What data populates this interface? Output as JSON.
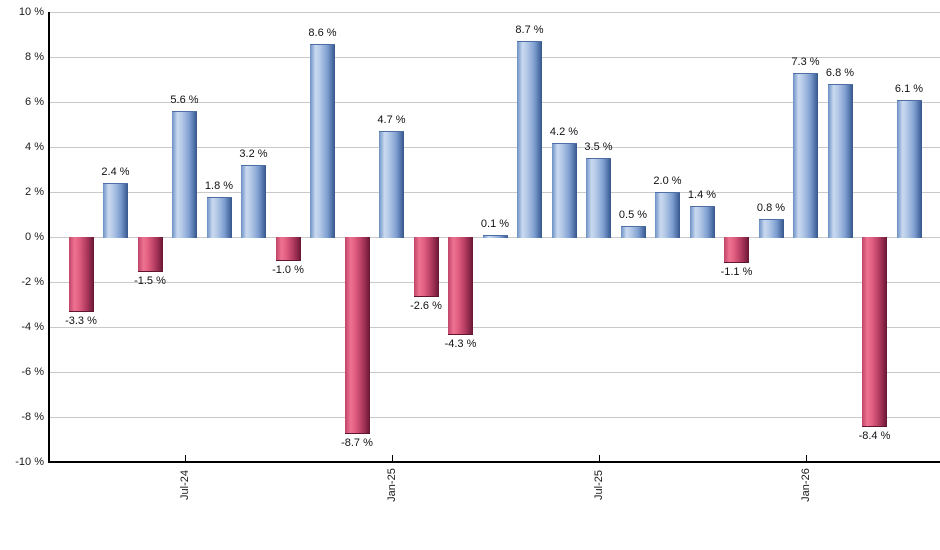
{
  "chart_data": {
    "type": "bar",
    "title": "",
    "xlabel": "",
    "ylabel": "",
    "ylim": [
      -10,
      10
    ],
    "grid": true,
    "legend": false,
    "colors": {
      "positive_bar": "#7e9ed0",
      "negative_bar": "#d0496e",
      "gridline": "#c9c9c9",
      "axis": "#000000",
      "text": "#1a1a1a"
    },
    "y_ticks": [
      {
        "value": 10,
        "label": "10 %"
      },
      {
        "value": 8,
        "label": "8 %"
      },
      {
        "value": 6,
        "label": "6 %"
      },
      {
        "value": 4,
        "label": "4 %"
      },
      {
        "value": 2,
        "label": "2 %"
      },
      {
        "value": 0,
        "label": "0 %"
      },
      {
        "value": -2,
        "label": "-2 %"
      },
      {
        "value": -4,
        "label": "-4 %"
      },
      {
        "value": -6,
        "label": "-6 %"
      },
      {
        "value": -8,
        "label": "-8 %"
      },
      {
        "value": -10,
        "label": "-10 %"
      }
    ],
    "bars": [
      {
        "value": -3.3,
        "label": "-3.3 %"
      },
      {
        "value": 2.4,
        "label": "2.4 %"
      },
      {
        "value": -1.5,
        "label": "-1.5 %"
      },
      {
        "value": 5.6,
        "label": "5.6 %"
      },
      {
        "value": 1.8,
        "label": "1.8 %"
      },
      {
        "value": 3.2,
        "label": "3.2 %"
      },
      {
        "value": -1.0,
        "label": "-1.0 %"
      },
      {
        "value": 8.6,
        "label": "8.6 %"
      },
      {
        "value": -8.7,
        "label": "-8.7 %"
      },
      {
        "value": 4.7,
        "label": "4.7 %"
      },
      {
        "value": -2.6,
        "label": "-2.6 %"
      },
      {
        "value": -4.3,
        "label": "-4.3 %"
      },
      {
        "value": 0.1,
        "label": "0.1 %"
      },
      {
        "value": 8.7,
        "label": "8.7 %"
      },
      {
        "value": 4.2,
        "label": "4.2 %"
      },
      {
        "value": 3.5,
        "label": "3.5 %"
      },
      {
        "value": 0.5,
        "label": "0.5 %"
      },
      {
        "value": 2.0,
        "label": "2.0 %"
      },
      {
        "value": 1.4,
        "label": "1.4 %"
      },
      {
        "value": -1.1,
        "label": "-1.1 %"
      },
      {
        "value": 0.8,
        "label": "0.8 %"
      },
      {
        "value": 7.3,
        "label": "7.3 %"
      },
      {
        "value": 6.8,
        "label": "6.8 %"
      },
      {
        "value": -8.4,
        "label": "-8.4 %"
      },
      {
        "value": 6.1,
        "label": "6.1 %"
      }
    ],
    "x_ticks": [
      {
        "bar_index": 3,
        "label": "Jul-24"
      },
      {
        "bar_index": 9,
        "label": "Jan-25"
      },
      {
        "bar_index": 15,
        "label": "Jul-25"
      },
      {
        "bar_index": 21,
        "label": "Jan-26"
      }
    ]
  }
}
